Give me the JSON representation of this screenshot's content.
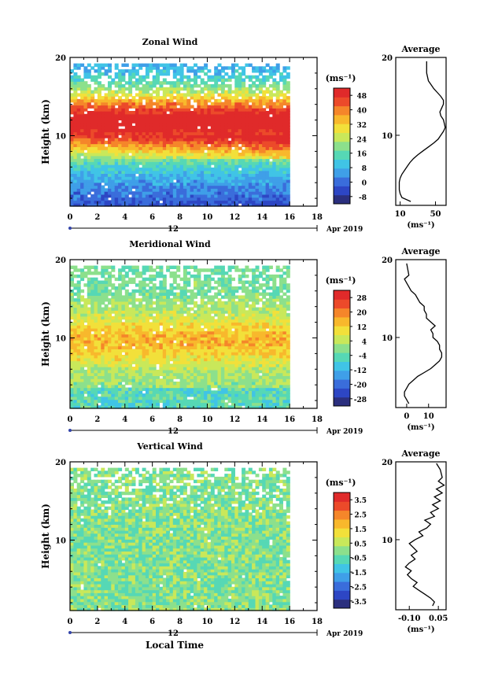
{
  "chart_data": [
    {
      "type": "heatmap",
      "title": "Zonal Wind",
      "xlabel": "",
      "ylabel": "Height (km)",
      "x_ticks": [
        "0",
        "2",
        "4",
        "6",
        "8",
        "10",
        "12",
        "14",
        "16",
        "18"
      ],
      "xlim": [
        0,
        18
      ],
      "ylim": [
        1,
        20
      ],
      "y_ticks": [
        "10",
        "20"
      ],
      "date_marker": "12",
      "date_label": "Apr 2019",
      "colorbar": {
        "unit": "(ms⁻¹)",
        "labels": [
          "48",
          "40",
          "32",
          "24",
          "16",
          "8",
          "0",
          "-8"
        ],
        "min": -12,
        "max": 52,
        "colors": [
          "#2b2f7e",
          "#2d46c4",
          "#3a6ddb",
          "#3f9fe8",
          "#40c4e6",
          "#56d8b5",
          "#8ce08c",
          "#c9e85a",
          "#f2e03a",
          "#f8b82c",
          "#f5862a",
          "#ec4a2a",
          "#e02a2a"
        ]
      },
      "data_extent_hours": [
        0,
        16
      ]
    },
    {
      "type": "line",
      "title": "Average",
      "xlabel": "(ms⁻¹)",
      "x_ticks": [
        "10",
        "50"
      ],
      "xlim": [
        5,
        62
      ],
      "y_ticks": [
        "10",
        "20"
      ],
      "ylim": [
        1,
        20
      ],
      "x": [
        22,
        12,
        10,
        9,
        9,
        9,
        10,
        12,
        15,
        18,
        21,
        25,
        30,
        36,
        42,
        48,
        53,
        56,
        59,
        61,
        60,
        59,
        56,
        55,
        57,
        59,
        59,
        56,
        52,
        48,
        45,
        42,
        41,
        40,
        40
      ],
      "y": [
        1.5,
        2,
        2.5,
        3,
        3.5,
        4,
        4.5,
        5,
        5.5,
        6,
        6.5,
        7,
        7.5,
        8,
        8.5,
        9,
        9.5,
        10,
        10.5,
        11,
        11.5,
        12,
        12.5,
        13,
        13.5,
        14,
        14.5,
        15,
        15.5,
        16,
        16.5,
        17,
        17.5,
        18,
        19.5
      ]
    },
    {
      "type": "heatmap",
      "title": "Meridional Wind",
      "xlabel": "",
      "ylabel": "Height (km)",
      "x_ticks": [
        "0",
        "2",
        "4",
        "6",
        "8",
        "10",
        "12",
        "14",
        "16",
        "18"
      ],
      "xlim": [
        0,
        18
      ],
      "ylim": [
        1,
        20
      ],
      "y_ticks": [
        "10",
        "20"
      ],
      "date_marker": "12",
      "date_label": "Apr 2019",
      "colorbar": {
        "unit": "(ms⁻¹)",
        "labels": [
          "28",
          "20",
          "12",
          "4",
          "-4",
          "-12",
          "-20",
          "-28"
        ],
        "min": -32,
        "max": 32,
        "colors": [
          "#2b2f7e",
          "#2d46c4",
          "#3a6ddb",
          "#3f9fe8",
          "#40c4e6",
          "#56d8b5",
          "#8ce08c",
          "#c9e85a",
          "#f2e03a",
          "#f8b82c",
          "#f5862a",
          "#ec4a2a",
          "#e02a2a"
        ]
      },
      "data_extent_hours": [
        0,
        16
      ]
    },
    {
      "type": "line",
      "title": "Average",
      "xlabel": "(ms⁻¹)",
      "x_ticks": [
        "0",
        "10"
      ],
      "xlim": [
        -5,
        18
      ],
      "y_ticks": [
        "10",
        "20"
      ],
      "ylim": [
        1,
        20
      ],
      "x": [
        1,
        0,
        -1,
        -1,
        0,
        1,
        3,
        5,
        8,
        11,
        13,
        15,
        16,
        16,
        15,
        15,
        14,
        12,
        12,
        11,
        13,
        11,
        9,
        9,
        8,
        8,
        6,
        5,
        4,
        2,
        1,
        0,
        -1,
        1,
        0
      ],
      "y": [
        1.5,
        2,
        2.5,
        3,
        3.5,
        4,
        4.5,
        5,
        5.5,
        6,
        6.5,
        7,
        7.5,
        8,
        8.5,
        9,
        9.5,
        10,
        10.5,
        11,
        11.5,
        12,
        12.5,
        13,
        13.5,
        14,
        14.5,
        15,
        15.5,
        16,
        16.5,
        17,
        17.5,
        18,
        19.5
      ]
    },
    {
      "type": "heatmap",
      "title": "Vertical Wind",
      "xlabel": "Local Time",
      "ylabel": "Height (km)",
      "x_ticks": [
        "0",
        "2",
        "4",
        "6",
        "8",
        "10",
        "12",
        "14",
        "16",
        "18"
      ],
      "xlim": [
        0,
        18
      ],
      "ylim": [
        1,
        20
      ],
      "y_ticks": [
        "10",
        "20"
      ],
      "date_marker": "12",
      "date_label": "Apr 2019",
      "colorbar": {
        "unit": "(ms⁻¹)",
        "labels": [
          "3.5",
          "2.5",
          "1.5",
          "0.5",
          "-0.5",
          "-1.5",
          "-2.5",
          "-3.5"
        ],
        "min": -4,
        "max": 4,
        "colors": [
          "#2b2f7e",
          "#2d46c4",
          "#3a6ddb",
          "#3f9fe8",
          "#40c4e6",
          "#56d8b5",
          "#8ce08c",
          "#c9e85a",
          "#f2e03a",
          "#f8b82c",
          "#f5862a",
          "#ec4a2a",
          "#e02a2a"
        ]
      },
      "data_extent_hours": [
        0,
        16
      ]
    },
    {
      "type": "line",
      "title": "Average",
      "xlabel": "(ms⁻¹)",
      "x_ticks": [
        "-0.10",
        "0.05"
      ],
      "xlim": [
        -0.17,
        0.09
      ],
      "y_ticks": [
        "10",
        "20"
      ],
      "ylim": [
        1,
        20
      ],
      "x": [
        0.02,
        0.03,
        0.01,
        -0.02,
        -0.05,
        -0.08,
        -0.06,
        -0.09,
        -0.11,
        -0.09,
        -0.12,
        -0.1,
        -0.07,
        -0.09,
        -0.06,
        -0.08,
        -0.1,
        -0.07,
        -0.03,
        -0.05,
        -0.01,
        0.01,
        -0.02,
        0.03,
        0.01,
        0.05,
        0.02,
        0.06,
        0.03,
        0.07,
        0.04,
        0.08,
        0.05,
        0.07,
        0.06,
        0.04
      ],
      "y": [
        1.5,
        2,
        2.5,
        3,
        3.5,
        4,
        4.5,
        5,
        5.5,
        6,
        6.5,
        7,
        7.5,
        8,
        8.5,
        9,
        9.5,
        10,
        10.5,
        11,
        11.5,
        12,
        12.5,
        13,
        13.5,
        14,
        14.5,
        15,
        15.5,
        16,
        16.5,
        17,
        17.5,
        18,
        19,
        19.8
      ]
    }
  ]
}
